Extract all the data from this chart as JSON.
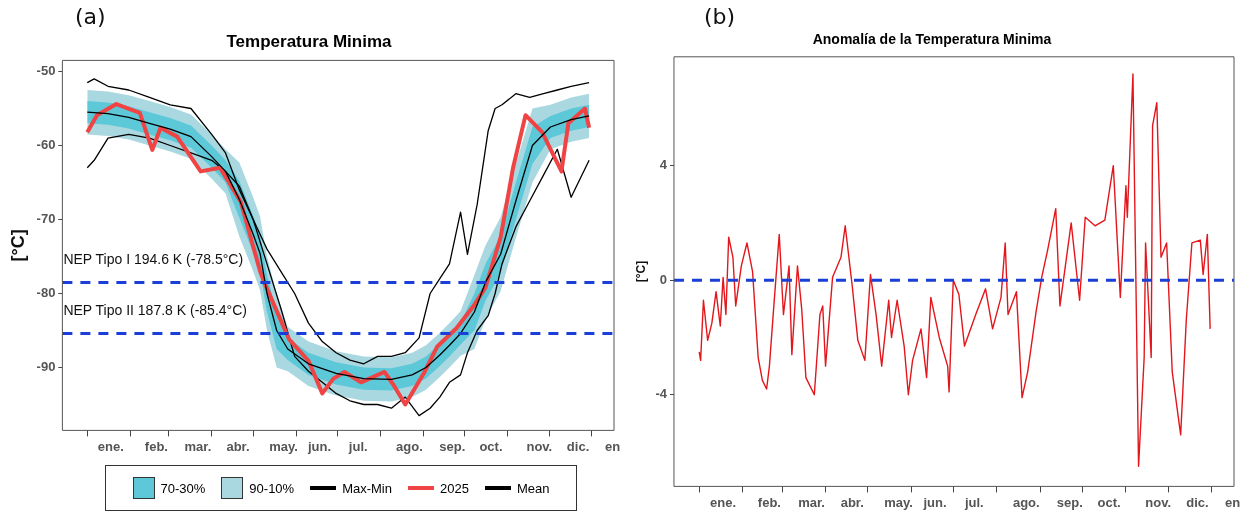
{
  "chart_data": [
    {
      "type": "line",
      "title": "Temperatura Minima",
      "ylabel": "[°C]",
      "annotations": [
        "(a)"
      ],
      "legend": "bottom",
      "grid": false,
      "xlim": [
        "2024-12-14",
        "2026-01-17"
      ],
      "ylim": [
        -98.5,
        -48.5
      ],
      "yticks": [
        -90,
        -80,
        -70,
        -60,
        -50
      ],
      "xticks": [
        {
          "value": "2025-01-01",
          "label": null
        },
        {
          "value": "2025-01-18",
          "label": "ene."
        },
        {
          "value": "2025-02-01",
          "label": null
        },
        {
          "value": "2025-02-20",
          "label": "feb."
        },
        {
          "value": "2025-03-01",
          "label": null
        },
        {
          "value": "2025-03-22",
          "label": "mar."
        },
        {
          "value": "2025-04-01",
          "label": null
        },
        {
          "value": "2025-04-20",
          "label": "abr."
        },
        {
          "value": "2025-05-01",
          "label": null
        },
        {
          "value": "2025-05-23",
          "label": "may."
        },
        {
          "value": "2025-06-01",
          "label": null
        },
        {
          "value": "2025-06-18",
          "label": "jun."
        },
        {
          "value": "2025-07-01",
          "label": null
        },
        {
          "value": "2025-07-16",
          "label": "jul."
        },
        {
          "value": "2025-08-01",
          "label": null
        },
        {
          "value": "2025-08-22",
          "label": "ago."
        },
        {
          "value": "2025-09-01",
          "label": null
        },
        {
          "value": "2025-09-22",
          "label": "sep."
        },
        {
          "value": "2025-10-01",
          "label": null
        },
        {
          "value": "2025-10-20",
          "label": "oct."
        },
        {
          "value": "2025-11-01",
          "label": null
        },
        {
          "value": "2025-11-24",
          "label": "nov."
        },
        {
          "value": "2025-12-01",
          "label": null
        },
        {
          "value": "2025-12-22",
          "label": "dic."
        },
        {
          "value": "2026-01-01",
          "label": null
        },
        {
          "value": "2026-01-16",
          "label": "en"
        }
      ],
      "ref_lines": [
        {
          "axis": "y",
          "value": -78.5,
          "label": "NEP Tipo I 194.6 K (-78.5°C)",
          "color": "#1a3fd8",
          "line_style": "dashed"
        },
        {
          "axis": "y",
          "value": -85.4,
          "label": "NEP Tipo II 187.8 K (-85.4°C)",
          "color": "#1a3fd8",
          "line_style": "dashed"
        }
      ],
      "series": [
        {
          "name": "70-30%",
          "type": "area",
          "color": "#5cc8d8",
          "x": [
            "2025-01-01",
            "2025-01-16",
            "2025-01-31",
            "2025-02-15",
            "2025-03-02",
            "2025-03-17",
            "2025-04-01",
            "2025-04-11",
            "2025-04-21",
            "2025-05-01",
            "2025-05-06",
            "2025-05-11",
            "2025-05-18",
            "2025-05-26",
            "2025-06-10",
            "2025-06-30",
            "2025-07-20",
            "2025-08-09",
            "2025-08-24",
            "2025-09-03",
            "2025-09-13",
            "2025-09-20",
            "2025-09-28",
            "2025-10-08",
            "2025-10-16",
            "2025-10-27",
            "2025-11-07",
            "2025-11-19",
            "2025-12-02",
            "2025-12-17",
            "2025-12-30"
          ],
          "values": [
            null,
            null,
            null,
            null,
            null,
            null,
            null,
            null,
            null,
            null,
            null,
            null,
            null,
            null,
            null,
            null,
            null,
            null,
            null,
            null,
            null,
            null,
            null,
            null,
            null,
            null,
            null,
            null,
            null,
            null,
            null
          ],
          "lower": [
            -57,
            -57.2,
            -57.7,
            -58.5,
            -59.3,
            -60.3,
            -63,
            -65,
            -69.8,
            -74.5,
            -77.1,
            -82.5,
            -87.5,
            -89,
            -91,
            -92.3,
            -93,
            -93.1,
            -92.5,
            -91.5,
            -89.8,
            -88.5,
            -86.9,
            -85,
            -81,
            -77.2,
            -70,
            -62.5,
            -59,
            -58,
            -57.5
          ],
          "upper": [
            -54,
            -54.2,
            -54.7,
            -55.5,
            -56.3,
            -57.3,
            -60,
            -62,
            -64.8,
            -69.5,
            -72.1,
            -77.5,
            -82.5,
            -86,
            -88,
            -89.3,
            -90,
            -90.1,
            -89.5,
            -88.5,
            -86.8,
            -85.5,
            -83.9,
            -80,
            -76,
            -72.2,
            -65,
            -57.5,
            -56,
            -55,
            -54.5
          ]
        },
        {
          "name": "90-10%",
          "type": "area",
          "color": "#aad8e0",
          "x": [
            "2025-01-01",
            "2025-01-16",
            "2025-01-31",
            "2025-02-15",
            "2025-03-02",
            "2025-03-17",
            "2025-04-01",
            "2025-04-11",
            "2025-04-21",
            "2025-05-01",
            "2025-05-06",
            "2025-05-11",
            "2025-05-18",
            "2025-05-26",
            "2025-06-10",
            "2025-06-30",
            "2025-07-20",
            "2025-08-09",
            "2025-08-24",
            "2025-09-03",
            "2025-09-13",
            "2025-09-20",
            "2025-09-28",
            "2025-10-08",
            "2025-10-16",
            "2025-10-27",
            "2025-11-07",
            "2025-11-19",
            "2025-12-02",
            "2025-12-17",
            "2025-12-30"
          ],
          "values": [
            null,
            null,
            null,
            null,
            null,
            null,
            null,
            null,
            null,
            null,
            null,
            null,
            null,
            null,
            null,
            null,
            null,
            null,
            null,
            null,
            null,
            null,
            null,
            null,
            null,
            null,
            null,
            null,
            null,
            null,
            null
          ],
          "lower": [
            -58.5,
            -58.7,
            -59.2,
            -60,
            -60.8,
            -61.8,
            -64.5,
            -66.5,
            -72.3,
            -77,
            -79.6,
            -85,
            -90,
            -90.5,
            -92.5,
            -93.8,
            -94.5,
            -94.6,
            -94,
            -93,
            -91.3,
            -90,
            -88.4,
            -87.5,
            -83.5,
            -79.7,
            -72.5,
            -65,
            -60.5,
            -59.5,
            -59
          ],
          "upper": [
            -52.5,
            -52.7,
            -53.2,
            -54,
            -54.8,
            -55.8,
            -58.5,
            -60.5,
            -62.3,
            -67,
            -69.6,
            -75,
            -80,
            -84.5,
            -86.5,
            -87.8,
            -88.5,
            -88.6,
            -88,
            -87,
            -85.3,
            -84,
            -82.4,
            -77.5,
            -73.5,
            -69.7,
            -62.5,
            -55,
            -54.5,
            -53.5,
            -53
          ]
        },
        {
          "name": "Max-Min",
          "color": "#000000",
          "values": [
            -51.5,
            -51,
            -52,
            -52.5,
            -53.5,
            -54.5,
            -55,
            -58.5,
            -61,
            -66,
            -70,
            -74,
            -77,
            -80,
            -84,
            -86.5,
            -88,
            -89,
            -89.5,
            -88.5,
            -88.5,
            -88,
            -86,
            -80,
            -78,
            -76,
            -69,
            -74.7,
            -68,
            -58,
            -55,
            -54.5,
            -53,
            -53.5,
            -53,
            -52.5,
            -52,
            -51.5
          ],
          "x": [
            "2025-01-01",
            "2025-01-06",
            "2025-01-16",
            "2025-01-31",
            "2025-02-15",
            "2025-03-02",
            "2025-03-17",
            "2025-04-01",
            "2025-04-11",
            "2025-04-21",
            "2025-05-01",
            "2025-05-11",
            "2025-05-21",
            "2025-05-31",
            "2025-06-10",
            "2025-06-20",
            "2025-06-30",
            "2025-07-10",
            "2025-07-20",
            "2025-07-30",
            "2025-08-09",
            "2025-08-19",
            "2025-08-29",
            "2025-09-06",
            "2025-09-13",
            "2025-09-20",
            "2025-09-28",
            "2025-10-03",
            "2025-10-10",
            "2025-10-18",
            "2025-10-23",
            "2025-10-28",
            "2025-11-07",
            "2025-11-17",
            "2025-11-27",
            "2025-12-07",
            "2025-12-17",
            "2025-12-30"
          ]
        },
        {
          "color": "#000000",
          "x": [
            "2025-01-01",
            "2025-01-06",
            "2025-01-16",
            "2025-01-31",
            "2025-02-15",
            "2025-03-02",
            "2025-03-17",
            "2025-04-01",
            "2025-04-11",
            "2025-04-21",
            "2025-05-01",
            "2025-05-11",
            "2025-05-21",
            "2025-05-31",
            "2025-06-10",
            "2025-06-20",
            "2025-06-30",
            "2025-07-10",
            "2025-07-20",
            "2025-07-30",
            "2025-08-09",
            "2025-08-19",
            "2025-08-29",
            "2025-09-06",
            "2025-09-13",
            "2025-09-20",
            "2025-09-28",
            "2025-10-03",
            "2025-10-10",
            "2025-10-18",
            "2025-10-23",
            "2025-10-28",
            "2025-11-07",
            "2025-11-17",
            "2025-11-27",
            "2025-12-07",
            "2025-12-17",
            "2025-12-30"
          ],
          "values": [
            -63,
            -62,
            -59,
            -58.5,
            -59,
            -60,
            -61,
            -62,
            -63.5,
            -65.5,
            -70,
            -76,
            -82,
            -88.5,
            -90.5,
            -92,
            -93.5,
            -94.5,
            -95,
            -95,
            -95.5,
            -94,
            -96.5,
            -95.5,
            -94,
            -92,
            -91,
            -88,
            -85,
            -83,
            -80,
            -76,
            -71,
            -67.5,
            -64,
            -60.5,
            -67,
            -62
          ]
        },
        {
          "name": "2025",
          "color": "#f04444",
          "x": [
            "2025-01-01",
            "2025-01-08",
            "2025-01-22",
            "2025-02-08",
            "2025-02-17",
            "2025-02-23",
            "2025-03-07",
            "2025-03-24",
            "2025-04-07",
            "2025-04-22",
            "2025-05-06",
            "2025-05-09",
            "2025-05-27",
            "2025-06-10",
            "2025-06-20",
            "2025-06-28",
            "2025-07-06",
            "2025-07-18",
            "2025-08-04",
            "2025-08-11",
            "2025-08-19",
            "2025-09-02",
            "2025-09-11",
            "2025-09-25",
            "2025-10-07",
            "2025-10-16",
            "2025-10-27",
            "2025-11-05",
            "2025-11-14",
            "2025-11-26",
            "2025-12-10",
            "2025-12-15",
            "2025-12-27",
            "2025-12-30"
          ],
          "values": [
            -58.2,
            -55.9,
            -54.4,
            -55.6,
            -60.6,
            -57.6,
            -58.8,
            -63.5,
            -63,
            -67.6,
            -77,
            -78.5,
            -86.2,
            -89.1,
            -93.5,
            -91.5,
            -90.6,
            -92,
            -90.6,
            -92.5,
            -95,
            -90.6,
            -87.2,
            -84.7,
            -81.8,
            -79.2,
            -72.4,
            -63,
            -55.9,
            -58.2,
            -63.5,
            -57,
            -55,
            -57.6
          ]
        },
        {
          "name": "Mean",
          "color": "#000000",
          "x": [
            "2025-01-01",
            "2025-01-16",
            "2025-01-31",
            "2025-02-15",
            "2025-03-02",
            "2025-03-17",
            "2025-04-01",
            "2025-04-11",
            "2025-04-21",
            "2025-05-01",
            "2025-05-06",
            "2025-05-11",
            "2025-05-18",
            "2025-05-26",
            "2025-06-10",
            "2025-06-30",
            "2025-07-20",
            "2025-08-09",
            "2025-08-24",
            "2025-09-03",
            "2025-09-13",
            "2025-09-20",
            "2025-09-28",
            "2025-10-08",
            "2025-10-16",
            "2025-10-27",
            "2025-11-07",
            "2025-11-19",
            "2025-12-02",
            "2025-12-17",
            "2025-12-30"
          ],
          "values": [
            -55.5,
            -55.7,
            -56.2,
            -57,
            -57.8,
            -58.8,
            -61.5,
            -63.5,
            -67.3,
            -72,
            -74.6,
            -80,
            -85,
            -87.5,
            -89.5,
            -90.8,
            -91.5,
            -91.6,
            -91,
            -90,
            -88.3,
            -87,
            -85.4,
            -82.5,
            -78.5,
            -74.7,
            -67.5,
            -60,
            -57.5,
            -56.5,
            -56
          ]
        }
      ]
    },
    {
      "type": "line",
      "title": "Anomalía de la Temperatura Minima",
      "ylabel": "[°C]",
      "annotations": [
        "(b)"
      ],
      "grid": false,
      "xlim": [
        "2024-12-14",
        "2026-01-17"
      ],
      "ylim": [
        -7.2,
        7.8
      ],
      "yticks": [
        -4,
        0,
        4
      ],
      "xticks": [
        {
          "value": "2025-01-01",
          "label": null
        },
        {
          "value": "2025-01-18",
          "label": "ene."
        },
        {
          "value": "2025-02-01",
          "label": null
        },
        {
          "value": "2025-02-20",
          "label": "feb."
        },
        {
          "value": "2025-03-01",
          "label": null
        },
        {
          "value": "2025-03-22",
          "label": "mar."
        },
        {
          "value": "2025-04-01",
          "label": null
        },
        {
          "value": "2025-04-20",
          "label": "abr."
        },
        {
          "value": "2025-05-01",
          "label": null
        },
        {
          "value": "2025-05-23",
          "label": "may."
        },
        {
          "value": "2025-06-01",
          "label": null
        },
        {
          "value": "2025-06-18",
          "label": "jun."
        },
        {
          "value": "2025-07-01",
          "label": null
        },
        {
          "value": "2025-07-16",
          "label": "jul."
        },
        {
          "value": "2025-08-01",
          "label": null
        },
        {
          "value": "2025-08-22",
          "label": "ago."
        },
        {
          "value": "2025-09-01",
          "label": null
        },
        {
          "value": "2025-09-22",
          "label": "sep."
        },
        {
          "value": "2025-10-01",
          "label": null
        },
        {
          "value": "2025-10-20",
          "label": "oct."
        },
        {
          "value": "2025-11-01",
          "label": null
        },
        {
          "value": "2025-11-24",
          "label": "nov."
        },
        {
          "value": "2025-12-01",
          "label": null
        },
        {
          "value": "2025-12-22",
          "label": "dic."
        },
        {
          "value": "2026-01-01",
          "label": null
        },
        {
          "value": "2026-01-16",
          "label": "en"
        }
      ],
      "ref_lines": [
        {
          "axis": "y",
          "value": 0,
          "color": "#1a3fd8",
          "line_style": "dashed"
        }
      ],
      "series": [
        {
          "color": "#e3161b",
          "x": [
            "2025-01-01",
            "2025-01-02",
            "2025-01-04",
            "2025-01-07",
            "2025-01-10",
            "2025-01-13",
            "2025-01-16",
            "2025-01-18",
            "2025-01-20",
            "2025-01-22",
            "2025-01-25",
            "2025-01-27",
            "2025-01-31",
            "2025-02-04",
            "2025-02-08",
            "2025-02-12",
            "2025-02-15",
            "2025-02-18",
            "2025-02-20",
            "2025-02-23",
            "2025-02-27",
            "2025-03-02",
            "2025-03-06",
            "2025-03-08",
            "2025-03-12",
            "2025-03-15",
            "2025-03-18",
            "2025-03-24",
            "2025-03-28",
            "2025-03-30",
            "2025-04-01",
            "2025-04-06",
            "2025-04-12",
            "2025-04-15",
            "2025-04-20",
            "2025-04-24",
            "2025-04-29",
            "2025-05-03",
            "2025-05-07",
            "2025-05-11",
            "2025-05-16",
            "2025-05-18",
            "2025-05-22",
            "2025-05-27",
            "2025-05-30",
            "2025-06-02",
            "2025-06-08",
            "2025-06-12",
            "2025-06-15",
            "2025-06-21",
            "2025-06-27",
            "2025-06-28",
            "2025-07-01",
            "2025-07-05",
            "2025-07-09",
            "2025-07-17",
            "2025-07-24",
            "2025-07-29",
            "2025-08-04",
            "2025-08-07",
            "2025-08-09",
            "2025-08-15",
            "2025-08-19",
            "2025-08-23",
            "2025-08-29",
            "2025-09-02",
            "2025-09-06",
            "2025-09-12",
            "2025-09-15",
            "2025-09-23",
            "2025-09-29",
            "2025-10-03",
            "2025-10-10",
            "2025-10-17",
            "2025-10-23",
            "2025-10-28",
            "2025-11-01",
            "2025-11-02",
            "2025-11-06",
            "2025-11-10",
            "2025-11-14",
            "2025-11-15",
            "2025-11-19",
            "2025-11-20",
            "2025-11-23",
            "2025-11-26",
            "2025-11-30",
            "2025-12-04",
            "2025-12-10",
            "2025-12-14",
            "2025-12-18",
            "2025-12-24",
            "2025-12-26",
            "2025-12-29",
            "2025-12-31"
          ],
          "values": [
            -2.5,
            -2.8,
            -0.7,
            -2.1,
            -1.5,
            -0.4,
            -1.6,
            0.1,
            -1.2,
            1.5,
            0.8,
            -0.9,
            0.5,
            1.3,
            0.3,
            -2.7,
            -3.5,
            -3.8,
            -3.0,
            -1.0,
            1.6,
            -1.2,
            0.5,
            -2.6,
            0.5,
            -1.0,
            -3.4,
            -4.0,
            -1.2,
            -0.9,
            -3.0,
            0.1,
            0.8,
            1.9,
            -0.2,
            -2.1,
            -2.8,
            0.2,
            -1.2,
            -3.0,
            -0.7,
            -2.0,
            -0.7,
            -2.3,
            -4.0,
            -2.8,
            -1.7,
            -3.4,
            -0.6,
            -2.0,
            -3.0,
            -3.9,
            0.0,
            -0.5,
            -2.3,
            -1.2,
            -0.3,
            -1.7,
            -0.6,
            1.3,
            -1.2,
            -0.4,
            -4.1,
            -3.2,
            -1.1,
            0.1,
            1.0,
            2.5,
            -0.9,
            2.0,
            -0.7,
            2.2,
            1.9,
            2.1,
            4.0,
            -0.6,
            3.3,
            2.2,
            7.2,
            -6.5,
            -2.7,
            1.3,
            -2.7,
            5.4,
            6.2,
            0.8,
            1.3,
            -3.2,
            -5.4,
            -1.4,
            1.3,
            1.4,
            0.2,
            1.6,
            -1.7
          ]
        }
      ]
    }
  ]
}
